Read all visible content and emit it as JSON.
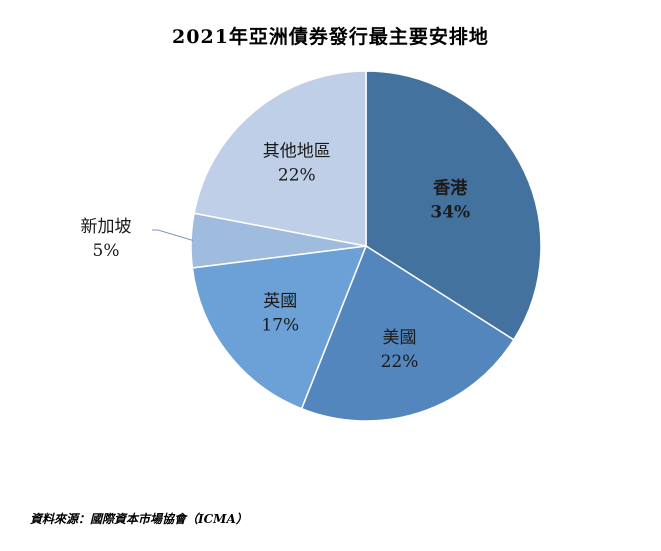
{
  "chart_data": {
    "type": "pie",
    "title": "2021年亞洲債券發行最主要安排地",
    "slices": [
      {
        "label": "香港",
        "value": 34,
        "value_text": "34%",
        "color": "#44729F",
        "emphasis": true
      },
      {
        "label": "美國",
        "value": 22,
        "value_text": "22%",
        "color": "#5486BE",
        "emphasis": false
      },
      {
        "label": "英國",
        "value": 17,
        "value_text": "17%",
        "color": "#6CA1D8",
        "emphasis": false
      },
      {
        "label": "新加坡",
        "value": 5,
        "value_text": "5%",
        "color": "#9FBCDE",
        "emphasis": false
      },
      {
        "label": "其他地區",
        "value": 22,
        "value_text": "22%",
        "color": "#BFCFE7",
        "emphasis": false
      }
    ],
    "start_angle": "12 o'clock",
    "direction": "clockwise",
    "legend": "none"
  },
  "source": "資料來源：國際資本市場協會（ICMA）"
}
